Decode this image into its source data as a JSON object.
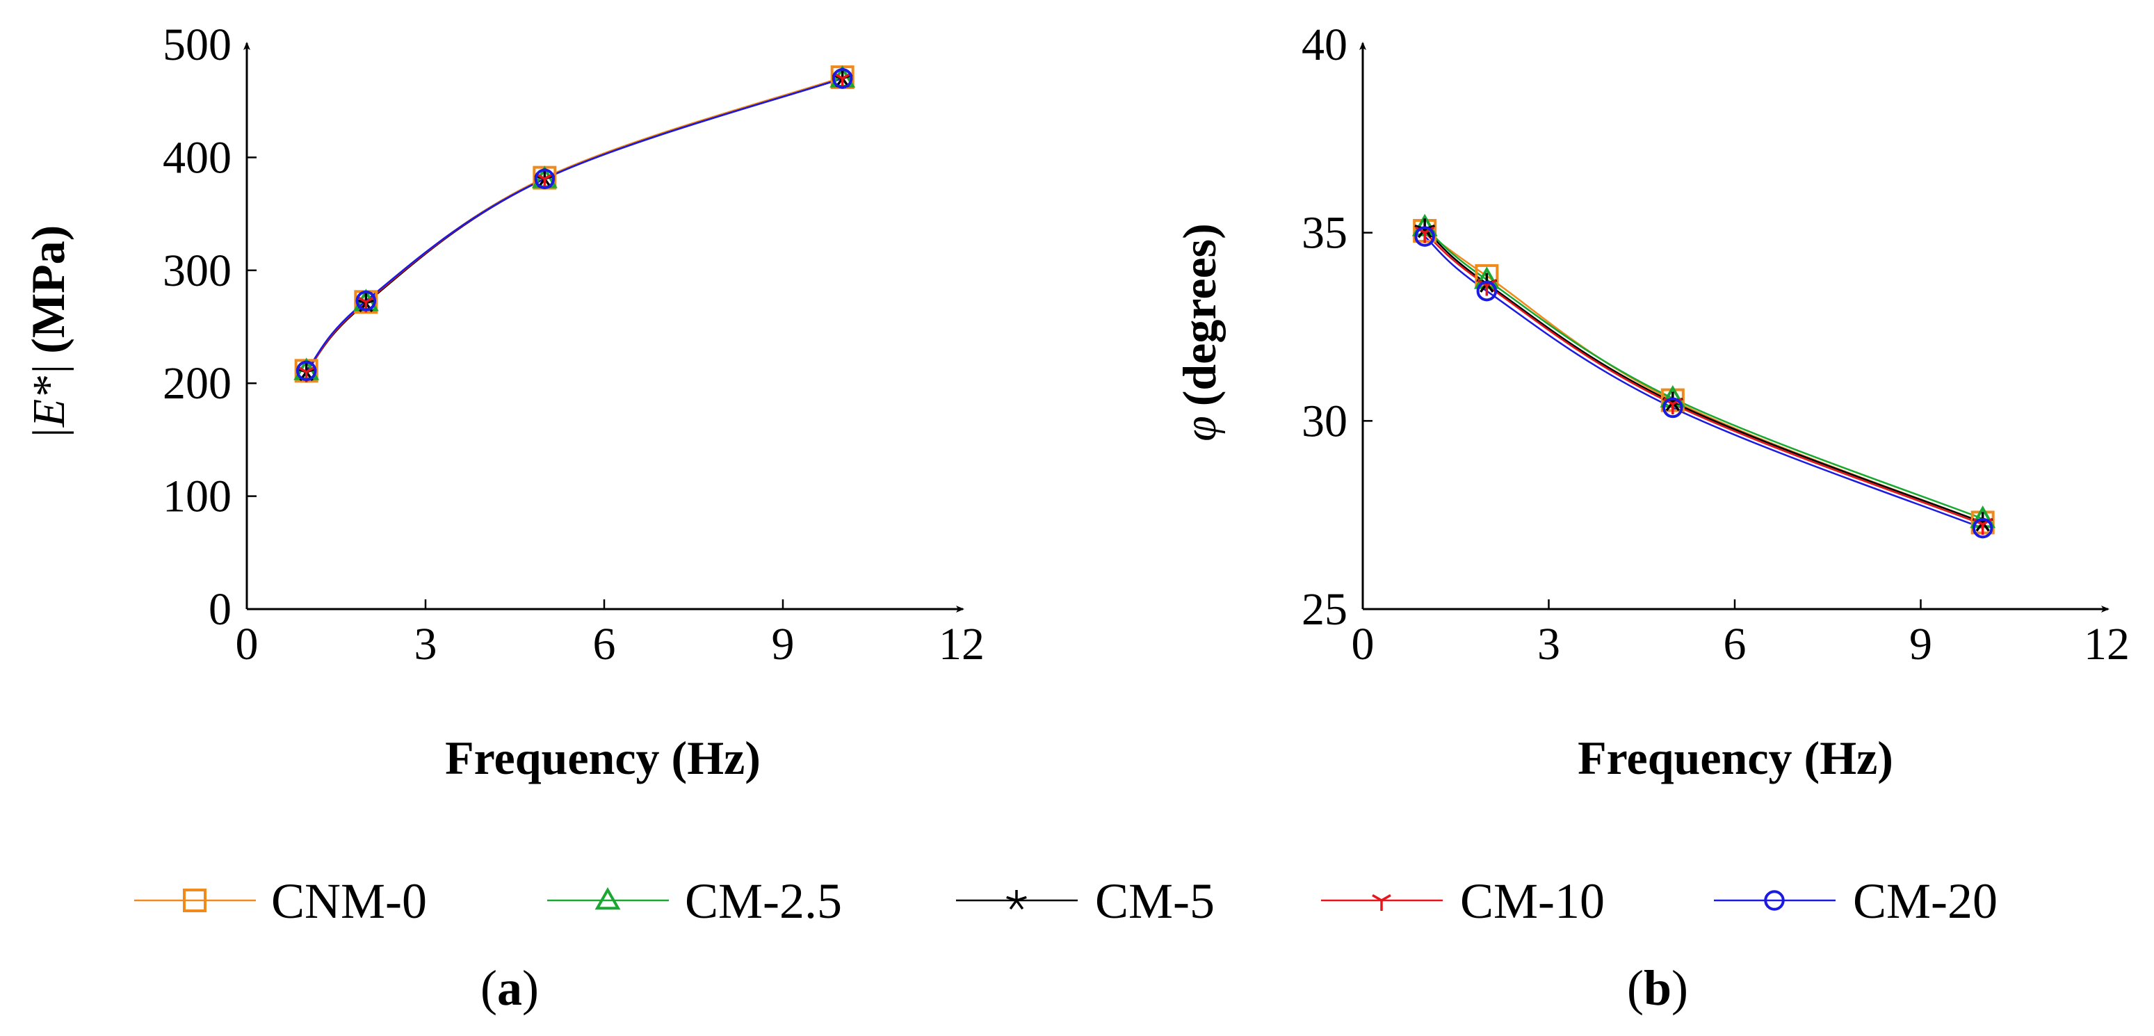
{
  "chart_data": [
    {
      "type": "line",
      "panel_label": "a",
      "xlabel": "Frequency (Hz)",
      "ylabel_math": "|E*|",
      "ylabel_unit": "(MPa)",
      "xlim": [
        0,
        12
      ],
      "ylim": [
        0,
        500
      ],
      "xticks": [
        0,
        3,
        6,
        9,
        12
      ],
      "yticks": [
        0,
        100,
        200,
        300,
        400,
        500
      ],
      "x": [
        1,
        2,
        5,
        10
      ],
      "series": [
        {
          "name": "CNM-0",
          "color": "#f08a1c",
          "marker": "square",
          "values": [
            211,
            272,
            382,
            471
          ]
        },
        {
          "name": "CM-2.5",
          "color": "#1aa832",
          "marker": "triangle",
          "values": [
            211,
            272,
            381,
            470
          ]
        },
        {
          "name": "CM-5",
          "color": "#000000",
          "marker": "star",
          "values": [
            210,
            271,
            381,
            470
          ]
        },
        {
          "name": "CM-10",
          "color": "#e8141c",
          "marker": "tri-down",
          "values": [
            210,
            272,
            381,
            470
          ]
        },
        {
          "name": "CM-20",
          "color": "#1a1ae0",
          "marker": "circle",
          "values": [
            211,
            273,
            381,
            470
          ]
        }
      ]
    },
    {
      "type": "line",
      "panel_label": "b",
      "xlabel": "Frequency (Hz)",
      "ylabel_math": "φ",
      "ylabel_unit": "(degrees)",
      "xlim": [
        0,
        12
      ],
      "ylim": [
        25,
        40
      ],
      "xticks": [
        0,
        3,
        6,
        9,
        12
      ],
      "yticks": [
        25,
        30,
        35,
        40
      ],
      "x": [
        1,
        2,
        5,
        10
      ],
      "series": [
        {
          "name": "CNM-0",
          "color": "#f08a1c",
          "marker": "square",
          "values": [
            35.05,
            33.85,
            30.55,
            27.3
          ]
        },
        {
          "name": "CM-2.5",
          "color": "#1aa832",
          "marker": "triangle",
          "values": [
            35.15,
            33.75,
            30.6,
            27.4
          ]
        },
        {
          "name": "CM-5",
          "color": "#000000",
          "marker": "star",
          "values": [
            35.1,
            33.65,
            30.5,
            27.3
          ]
        },
        {
          "name": "CM-10",
          "color": "#e8141c",
          "marker": "tri-down",
          "values": [
            35.0,
            33.6,
            30.45,
            27.25
          ]
        },
        {
          "name": "CM-20",
          "color": "#1a1ae0",
          "marker": "circle",
          "values": [
            34.9,
            33.45,
            30.35,
            27.15
          ]
        }
      ]
    }
  ],
  "legend": [
    {
      "name": "CNM-0",
      "color": "#f08a1c",
      "marker": "square"
    },
    {
      "name": "CM-2.5",
      "color": "#1aa832",
      "marker": "triangle"
    },
    {
      "name": "CM-5",
      "color": "#000000",
      "marker": "star"
    },
    {
      "name": "CM-10",
      "color": "#e8141c",
      "marker": "tri-down"
    },
    {
      "name": "CM-20",
      "color": "#1a1ae0",
      "marker": "circle"
    }
  ]
}
